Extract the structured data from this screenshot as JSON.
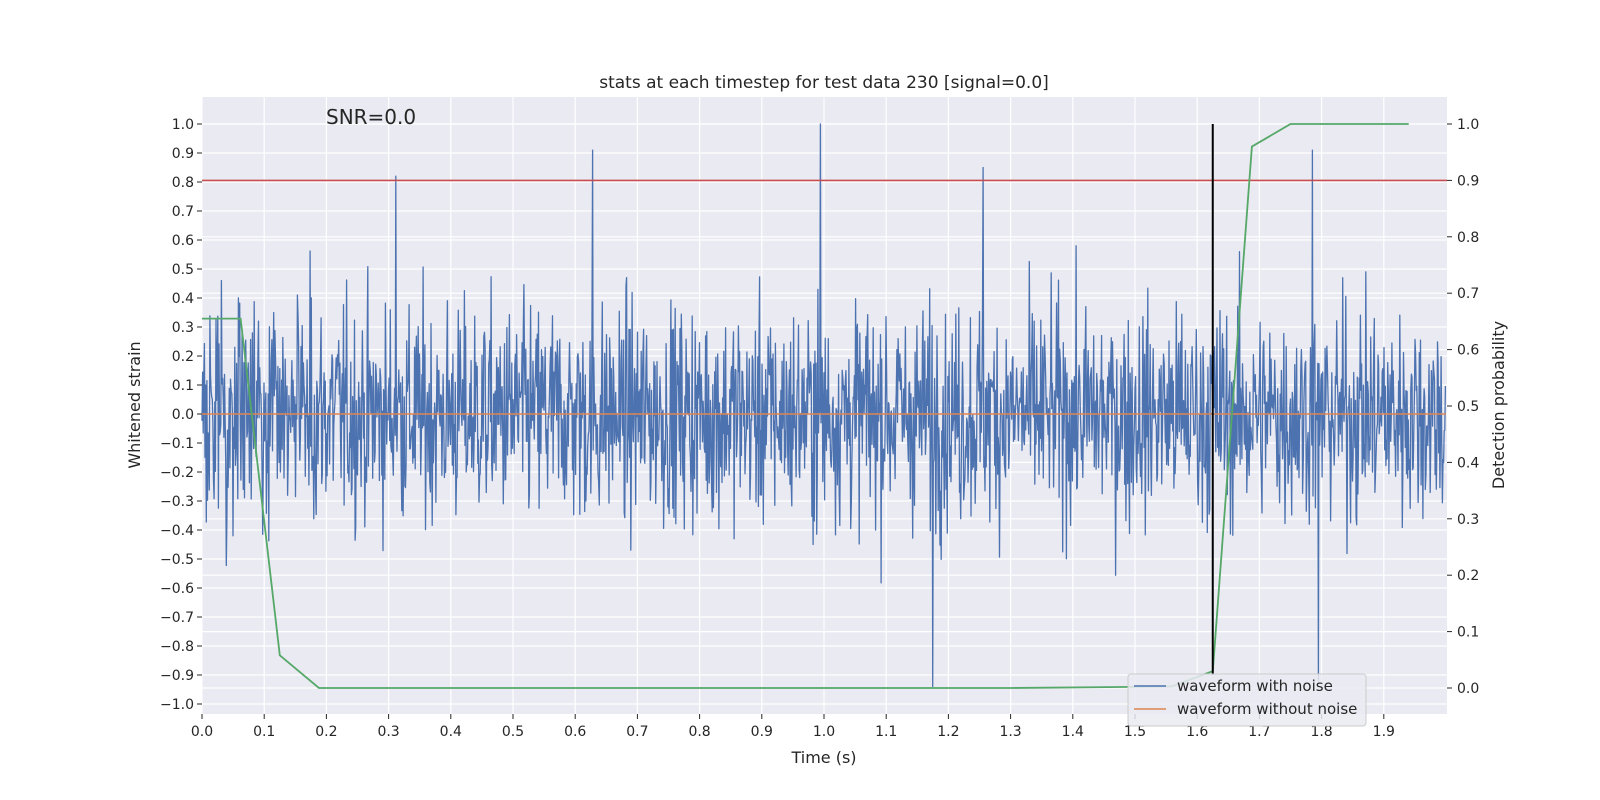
{
  "chart_data": {
    "type": "line",
    "title": "stats at each timestep for test data 230 [signal=0.0]",
    "annotation": "SNR=0.0",
    "xlabel": "Time (s)",
    "ylabel": "Whitened strain",
    "ylabel_right": "Detection probability",
    "xlim": [
      0.0,
      2.0
    ],
    "ylim": [
      -1.05,
      1.05
    ],
    "ylim_right": [
      -0.045,
      1.045
    ],
    "grid": true,
    "legend_position": "lower-right",
    "x_ticks": [
      "0.0",
      "0.1",
      "0.2",
      "0.3",
      "0.4",
      "0.5",
      "0.6",
      "0.7",
      "0.8",
      "0.9",
      "1.0",
      "1.1",
      "1.2",
      "1.3",
      "1.4",
      "1.5",
      "1.6",
      "1.7",
      "1.8",
      "1.9"
    ],
    "y_ticks": [
      "1.0",
      "0.9",
      "0.8",
      "0.7",
      "0.6",
      "0.5",
      "0.4",
      "0.3",
      "0.2",
      "0.1",
      "0.0",
      "−0.1",
      "−0.2",
      "−0.3",
      "−0.4",
      "−0.5",
      "−0.6",
      "−0.7",
      "−0.8",
      "−0.9",
      "−1.0"
    ],
    "y_ticks_right": [
      "1.0",
      "0.9",
      "0.8",
      "0.7",
      "0.6",
      "0.5",
      "0.4",
      "0.3",
      "0.2",
      "0.1",
      "0.0"
    ],
    "series": [
      {
        "name": "waveform with noise",
        "color": "#4c72b0",
        "axis": "left",
        "samples": 2048,
        "range": [
          -1.0,
          1.0
        ],
        "peaks": [
          {
            "x": 0.312,
            "y": 0.82
          },
          {
            "x": 0.628,
            "y": 0.91
          },
          {
            "x": 0.994,
            "y": 1.0
          },
          {
            "x": 1.175,
            "y": -0.94
          },
          {
            "x": 1.256,
            "y": 0.85
          },
          {
            "x": 1.785,
            "y": 0.91
          },
          {
            "x": 1.795,
            "y": -0.92
          }
        ]
      },
      {
        "name": "waveform without noise",
        "color": "#dd8452",
        "axis": "left",
        "x": [
          0.0,
          2.0
        ],
        "y": [
          0.0,
          0.0
        ]
      },
      {
        "color": "#55a868",
        "axis": "right",
        "x": [
          0.0,
          0.062,
          0.125,
          0.188,
          0.25,
          0.5,
          1.0,
          1.3,
          1.5,
          1.56,
          1.625,
          1.688,
          1.75,
          1.8,
          1.94
        ],
        "y": [
          0.655,
          0.655,
          0.058,
          0.0,
          0.0,
          0.0,
          0.0,
          0.0,
          0.002,
          0.003,
          0.03,
          0.96,
          1.0,
          1.0,
          1.0
        ]
      }
    ],
    "threshold_line": {
      "y_right": 0.9,
      "color": "#c44e52"
    },
    "vertical_line": {
      "x": 1.625,
      "y_range": [
        -0.9,
        1.0
      ],
      "color": "#000000"
    }
  },
  "legend": {
    "items": [
      {
        "label": "waveform with noise",
        "color": "#4c72b0"
      },
      {
        "label": "waveform without noise",
        "color": "#dd8452"
      }
    ]
  },
  "style": {
    "plot_background": "#eaeaf2",
    "grid_color": "#ffffff"
  }
}
